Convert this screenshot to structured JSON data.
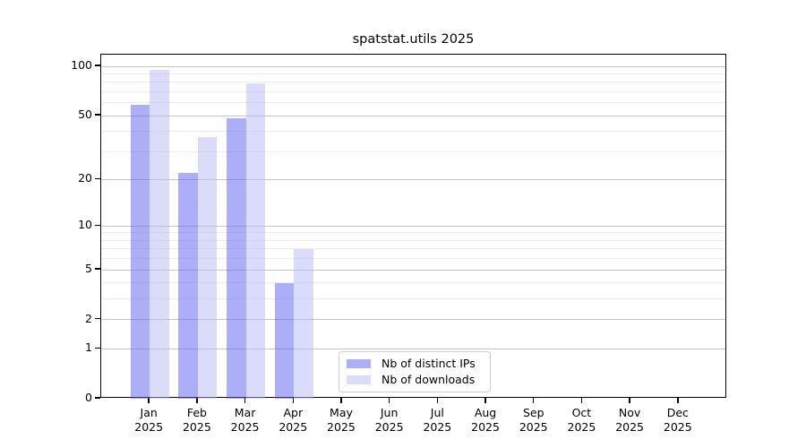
{
  "title": "spatstat.utils 2025",
  "chart_data": {
    "type": "bar",
    "title": "spatstat.utils 2025",
    "categories": [
      "Jan\n2025",
      "Feb\n2025",
      "Mar\n2025",
      "Apr\n2025",
      "May\n2025",
      "Jun\n2025",
      "Jul\n2025",
      "Aug\n2025",
      "Sep\n2025",
      "Oct\n2025",
      "Nov\n2025",
      "Dec\n2025"
    ],
    "series": [
      {
        "name": "Nb of distinct IPs",
        "color": "rgba(90, 94, 240, 0.5)",
        "solid_color": "#a9abf7",
        "values": [
          58,
          22,
          48,
          4,
          0,
          0,
          0,
          0,
          0,
          0,
          0,
          0
        ]
      },
      {
        "name": "Nb of downloads",
        "color": "rgba(181, 185, 243, 0.5)",
        "solid_color": "#dadcf9",
        "values": [
          95,
          37,
          79,
          7,
          0,
          0,
          0,
          0,
          0,
          0,
          0,
          0
        ]
      }
    ],
    "xlabel": "",
    "ylabel": "",
    "yscale": "log1p",
    "ylim": [
      0,
      118
    ],
    "yticks_major": [
      0,
      1,
      2,
      5,
      10,
      20,
      50,
      100
    ],
    "yticks_minor": [
      3,
      4,
      6,
      7,
      8,
      9,
      30,
      40,
      60,
      70,
      80,
      90
    ],
    "grid": "both",
    "legend_position": "lower-center-inside"
  },
  "colors": {
    "major_grid": "#c4c4c4",
    "minor_grid": "#ececec",
    "spine": "#000000",
    "background": "#ffffff",
    "legend_border": "#cccccc"
  }
}
